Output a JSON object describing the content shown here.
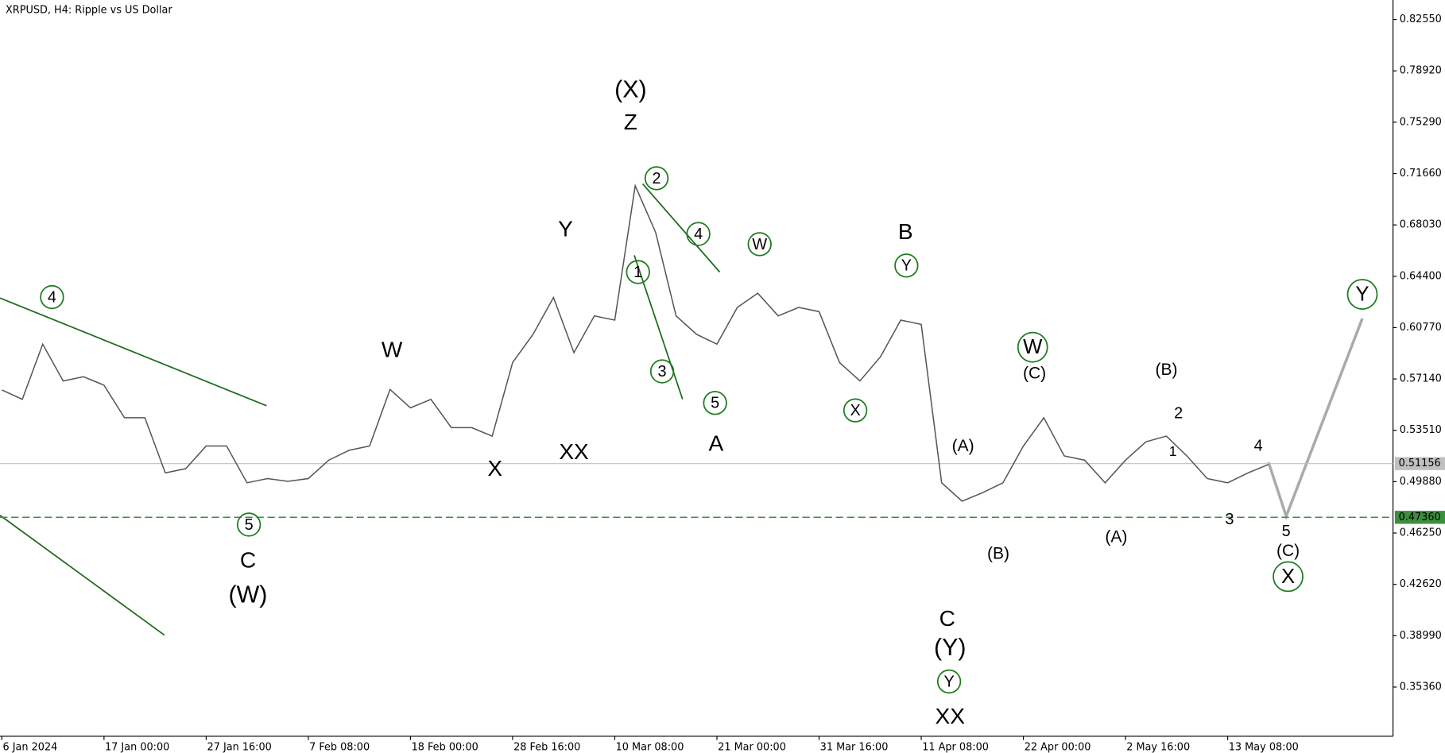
{
  "chart_data": {
    "type": "line",
    "title": "XRPUSD, H4:  Ripple vs US Dollar",
    "color": "#555555",
    "categories": [
      "6 Jan 2024",
      null,
      null,
      null,
      null,
      "17 Jan 00:00",
      null,
      null,
      null,
      null,
      "27 Jan 16:00",
      null,
      null,
      null,
      null,
      "7 Feb 08:00",
      null,
      null,
      null,
      null,
      "18 Feb 00:00",
      null,
      null,
      null,
      null,
      "28 Feb 16:00",
      null,
      null,
      null,
      null,
      "10 Mar 08:00",
      null,
      null,
      null,
      null,
      "21 Mar 00:00",
      null,
      null,
      null,
      null,
      "31 Mar 16:00",
      null,
      null,
      null,
      null,
      "11 Apr 08:00",
      null,
      null,
      null,
      null,
      "22 Apr 00:00",
      null,
      null,
      null,
      null,
      "2 May 16:00",
      null,
      null,
      null,
      null,
      "13 May 08:00",
      null,
      null
    ],
    "values": [
      0.5636,
      0.557,
      0.596,
      0.57,
      0.573,
      0.567,
      0.544,
      0.544,
      0.505,
      0.508,
      0.524,
      0.524,
      0.498,
      0.501,
      0.499,
      0.501,
      0.514,
      0.521,
      0.524,
      0.564,
      0.551,
      0.557,
      0.537,
      0.537,
      0.531,
      0.583,
      0.603,
      0.629,
      0.59,
      0.616,
      0.613,
      0.708,
      0.675,
      0.616,
      0.603,
      0.596,
      0.622,
      0.632,
      0.616,
      0.622,
      0.619,
      0.583,
      0.57,
      0.587,
      0.613,
      0.61,
      0.498,
      0.485,
      0.491,
      0.498,
      0.524,
      0.544,
      0.517,
      0.514,
      0.498,
      0.514,
      0.527,
      0.531,
      0.517,
      0.501,
      0.498,
      0.505,
      0.511
    ],
    "ylim": [
      0.3188,
      0.8393
    ],
    "yticks": [
      {
        "value": 0.8255,
        "label": "0.82550"
      },
      {
        "value": 0.7892,
        "label": "0.78920"
      },
      {
        "value": 0.7529,
        "label": "0.75290"
      },
      {
        "value": 0.7166,
        "label": "0.71660"
      },
      {
        "value": 0.6803,
        "label": "0.68030"
      },
      {
        "value": 0.644,
        "label": "0.64400"
      },
      {
        "value": 0.6077,
        "label": "0.60770"
      },
      {
        "value": 0.5714,
        "label": "0.57140"
      },
      {
        "value": 0.5351,
        "label": "0.53510"
      },
      {
        "value": 0.4988,
        "label": "0.49880"
      },
      {
        "value": 0.4625,
        "label": "0.46250"
      },
      {
        "value": 0.4262,
        "label": "0.42620"
      },
      {
        "value": 0.3899,
        "label": "0.38990"
      },
      {
        "value": 0.3536,
        "label": "0.35360"
      }
    ],
    "grid": false,
    "price_lines": [
      {
        "value": 0.51156,
        "label": "0.51156",
        "color": "#c0c0c0",
        "dashed": false
      },
      {
        "value": 0.4736,
        "label": "0.47360",
        "color": "#3c8f3c",
        "dashed": true
      }
    ],
    "annotations": [
      {
        "text": "4",
        "color": "#1e7b1e",
        "circled": true
      },
      {
        "text": "5",
        "color": "#1e7b1e",
        "circled": true
      },
      {
        "text": "2",
        "color": "#1e7b1e",
        "circled": true
      },
      {
        "text": "4",
        "color": "#1e7b1e",
        "circled": true
      },
      {
        "text": "1",
        "color": "#1e7b1e",
        "circled": true
      },
      {
        "text": "3",
        "color": "#1e7b1e",
        "circled": true
      },
      {
        "text": "5",
        "color": "#1e7b1e",
        "circled": true
      },
      {
        "text": "W",
        "color": "#1e7b1e",
        "circled": true
      },
      {
        "text": "Y",
        "color": "#1e7b1e",
        "circled": true
      },
      {
        "text": "X",
        "color": "#1e7b1e",
        "circled": true
      },
      {
        "text": "W",
        "color": "#1e7b1e",
        "circled": true
      },
      {
        "text": "Y",
        "color": "#1e7b1e",
        "circled": true
      },
      {
        "text": "Y",
        "color": "#1e7b1e",
        "circled": true
      },
      {
        "text": "X",
        "color": "#1e7b1e",
        "circled": true
      },
      {
        "text": "C",
        "color": "#8b0000",
        "circled": false
      },
      {
        "text": "W",
        "color": "#8b0000",
        "circled": false
      },
      {
        "text": "X",
        "color": "#8b0000",
        "circled": false
      },
      {
        "text": "Y",
        "color": "#8b0000",
        "circled": false
      },
      {
        "text": "XX",
        "color": "#8b0000",
        "circled": false
      },
      {
        "text": "Z",
        "color": "#8b0000",
        "circled": false
      },
      {
        "text": "A",
        "color": "#8b0000",
        "circled": false
      },
      {
        "text": "B",
        "color": "#8b0000",
        "circled": false
      },
      {
        "text": "C",
        "color": "#8b0000",
        "circled": false
      },
      {
        "text": "XX",
        "color": "#8b0000",
        "circled": false
      },
      {
        "text": "2",
        "color": "#8b0000",
        "circled": false
      },
      {
        "text": "1",
        "color": "#8b0000",
        "circled": false
      },
      {
        "text": "3",
        "color": "#8b0000",
        "circled": false
      },
      {
        "text": "4",
        "color": "#8b0000",
        "circled": false
      },
      {
        "text": "5",
        "color": "#8b0000",
        "circled": false
      },
      {
        "text": "(W)",
        "color": "#1a1a7a",
        "circled": false
      },
      {
        "text": "(X)",
        "color": "#1a1a7a",
        "circled": false
      },
      {
        "text": "(Y)",
        "color": "#1a1a7a",
        "circled": false
      },
      {
        "text": "(A)",
        "color": "#1a1a7a",
        "circled": false
      },
      {
        "text": "(B)",
        "color": "#1a1a7a",
        "circled": false
      },
      {
        "text": "(C)",
        "color": "#1a1a7a",
        "circled": false
      },
      {
        "text": "(A)",
        "color": "#1a1a7a",
        "circled": false
      },
      {
        "text": "(B)",
        "color": "#1a1a7a",
        "circled": false
      },
      {
        "text": "(C)",
        "color": "#1a1a7a",
        "circled": false
      }
    ]
  }
}
